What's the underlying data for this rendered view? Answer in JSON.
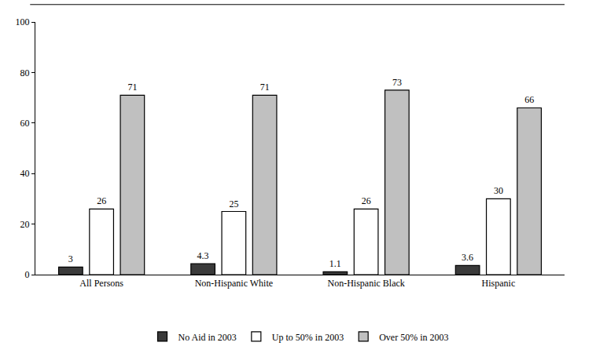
{
  "chart_data": {
    "type": "bar",
    "categories": [
      "All Persons",
      "Non-Hispanic White",
      "Non-Hispanic Black",
      "Hispanic"
    ],
    "series": [
      {
        "name": "No Aid in 2003",
        "color": "#3a3a3a",
        "values": [
          3,
          4.3,
          1.1,
          3.6
        ]
      },
      {
        "name": "Up to 50% in 2003",
        "color": "#ffffff",
        "values": [
          26,
          25,
          26,
          30
        ]
      },
      {
        "name": "Over 50% in 2003",
        "color": "#c0c0c0",
        "values": [
          71,
          71,
          73,
          66
        ]
      }
    ],
    "ylim": [
      0,
      100
    ],
    "yticks": [
      0,
      20,
      40,
      60,
      80,
      100
    ],
    "grid": false,
    "data_labels": true,
    "legend": "bottom"
  }
}
